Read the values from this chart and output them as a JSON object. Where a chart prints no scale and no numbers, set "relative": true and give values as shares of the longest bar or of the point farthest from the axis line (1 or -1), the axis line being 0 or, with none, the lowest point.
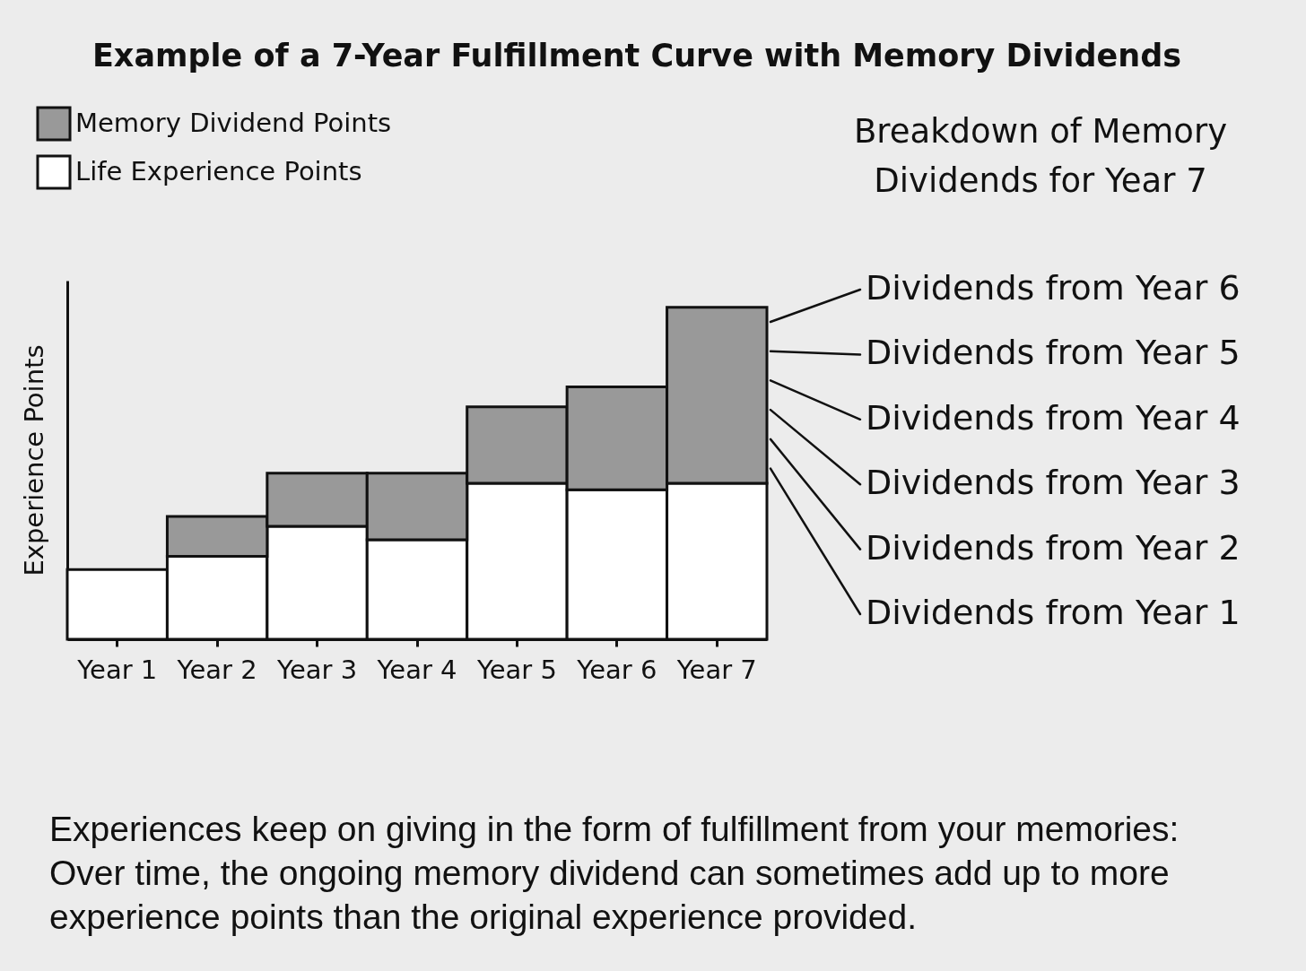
{
  "chart_data": {
    "type": "bar",
    "stacked": true,
    "relative": true,
    "title": "Example of a 7-Year Fulfillment Curve with Memory Dividends",
    "ylabel": "Experience Points",
    "categories": [
      "Year 1",
      "Year 2",
      "Year 3",
      "Year 4",
      "Year 5",
      "Year 6",
      "Year 7"
    ],
    "series": [
      {
        "name": "Life Experience Points",
        "color": "#ffffff",
        "values": [
          0.21,
          0.25,
          0.34,
          0.3,
          0.47,
          0.45,
          0.47
        ]
      },
      {
        "name": "Memory Dividend Points",
        "color": "#999999",
        "values": [
          null,
          0.12,
          0.16,
          0.2,
          0.23,
          0.31,
          0.53
        ]
      }
    ],
    "legend": "top left",
    "grid": false,
    "annotations": [
      "Breakdown of Memory Dividends for Year 7",
      "Dividends from Year 6",
      "Dividends from Year 5",
      "Dividends from Year 4",
      "Dividends from Year 3",
      "Dividends from Year 2",
      "Dividends from Year 1",
      "Experiences keep on giving in the form of fulfillment from your memories: Over time, the ongoing memory dividend can sometimes add up to more experience points than the original experience provided."
    ]
  }
}
